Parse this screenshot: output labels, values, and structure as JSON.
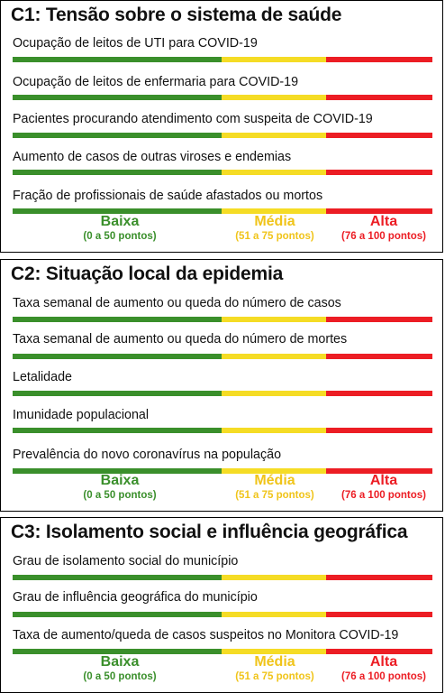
{
  "legend": {
    "low": {
      "label": "Baixa",
      "range": "(0 a 50 pontos)"
    },
    "mid": {
      "label": "Média",
      "range": "(51 a 75 pontos)"
    },
    "high": {
      "label": "Alta",
      "range": "(76 a 100 pontos)"
    }
  },
  "colors": {
    "low": "#3a8f2b",
    "mid": "#f5dc25",
    "high": "#ec1d24"
  },
  "scale_breaks_points": [
    50,
    75,
    100
  ],
  "panels": [
    {
      "title": "C1: Tensão sobre o sistema  de saúde",
      "items": [
        "Ocupação de leitos de UTI para COVID-19",
        "Ocupação de leitos de enfermaria para COVID-19",
        "Pacientes procurando atendimento com  suspeita de COVID-19",
        "Aumento de casos de outras viroses e endemias",
        "Fração de profissionais de saúde afastados ou mortos"
      ]
    },
    {
      "title": "C2: Situação local da epidemia",
      "items": [
        "Taxa semanal de aumento ou queda do número de casos",
        "Taxa semanal de aumento ou queda do número de mortes",
        "Letalidade",
        "Imunidade populacional",
        "Prevalência do novo coronavírus na população"
      ]
    },
    {
      "title": "C3: Isolamento social e influência geográfica",
      "items": [
        "Grau de isolamento social do município",
        "Grau de influência geográfica do município",
        "Taxa de aumento/queda de casos suspeitos no Monitora COVID-19"
      ]
    }
  ]
}
